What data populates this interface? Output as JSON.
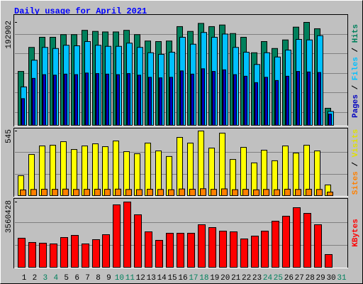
{
  "chart_data": {
    "type": "bar",
    "title": "Daily usage for April 2021",
    "categories": [
      "1",
      "2",
      "3",
      "4",
      "5",
      "6",
      "7",
      "8",
      "9",
      "10",
      "11",
      "12",
      "13",
      "14",
      "15",
      "16",
      "17",
      "18",
      "19",
      "20",
      "21",
      "22",
      "23",
      "24",
      "25",
      "26",
      "27",
      "28",
      "29",
      "30",
      "31"
    ],
    "category_colors": [
      "#000000",
      "#000000",
      "#00805c",
      "#00805c",
      "#000000",
      "#000000",
      "#000000",
      "#000000",
      "#000000",
      "#00805c",
      "#00805c",
      "#000000",
      "#000000",
      "#000000",
      "#000000",
      "#000000",
      "#00805c",
      "#00805c",
      "#000000",
      "#000000",
      "#000000",
      "#000000",
      "#000000",
      "#00805c",
      "#00805c",
      "#000000",
      "#000000",
      "#000000",
      "#000000",
      "#000000",
      "#00805c"
    ],
    "label_separator": "/",
    "panels": [
      {
        "ylim": [
          0,
          192902
        ],
        "yticks": [
          192902
        ],
        "series": [
          {
            "name": "Hits",
            "color": "#00805c",
            "values": [
              101000,
              146000,
              165000,
              165000,
              170000,
              170000,
              178000,
              176000,
              175000,
              175000,
              178000,
              170000,
              158000,
              157000,
              158000,
              185000,
              176000,
              191000,
              185000,
              188000,
              172000,
              165000,
              136000,
              157000,
              144000,
              160000,
              184000,
              192902,
              181000,
              32000,
              null
            ]
          },
          {
            "name": "Files",
            "color": "#00c0ff",
            "values": [
              72000,
              122000,
              146000,
              144000,
              150000,
              149000,
              157000,
              150000,
              148000,
              148000,
              154000,
              146000,
              136000,
              133000,
              137000,
              165000,
              152000,
              174000,
              165000,
              171000,
              146000,
              137000,
              114000,
              136000,
              128000,
              141000,
              161000,
              160000,
              168000,
              26000,
              null
            ]
          },
          {
            "name": "Pages",
            "color": "#0000c0",
            "values": [
              50000,
              88000,
              95000,
              94000,
              96000,
              95000,
              98000,
              97000,
              96000,
              95000,
              97000,
              94000,
              90000,
              89000,
              90000,
              102000,
              96000,
              106000,
              101000,
              104000,
              95000,
              92000,
              80000,
              90000,
              84000,
              92000,
              101000,
              100000,
              99000,
              21000,
              null
            ]
          }
        ]
      },
      {
        "ylim": [
          0,
          545
        ],
        "yticks": [
          545
        ],
        "series": [
          {
            "name": "Visits",
            "color": "#ffff00",
            "values": [
              168,
              347,
              419,
              425,
              455,
              389,
              419,
              437,
              413,
              461,
              371,
              353,
              443,
              377,
              330,
              491,
              443,
              545,
              401,
              527,
              305,
              407,
              276,
              383,
              294,
              419,
              359,
              425,
              377,
              90,
              null
            ]
          },
          {
            "name": "Sites",
            "color": "#ff8000",
            "values": [
              48,
              52,
              54,
              53,
              55,
              52,
              53,
              54,
              53,
              55,
              52,
              51,
              54,
              52,
              50,
              56,
              54,
              58,
              53,
              57,
              50,
              53,
              49,
              52,
              50,
              54,
              52,
              54,
              52,
              30,
              null
            ]
          }
        ]
      },
      {
        "ylim": [
          0,
          3560428
        ],
        "yticks": [
          3560428
        ],
        "series": [
          {
            "name": "KBytes",
            "color": "#ff0000",
            "values": [
              1587000,
              1355000,
              1316000,
              1277000,
              1625000,
              1741000,
              1277000,
              1509000,
              1780000,
              3406000,
              3560428,
              2864000,
              1935000,
              1471000,
              1858000,
              1858000,
              1858000,
              2322000,
              2167000,
              1974000,
              1935000,
              1548000,
              1703000,
              1974000,
              2516000,
              2787000,
              3251000,
              2941000,
              2322000,
              697000,
              null
            ]
          }
        ]
      }
    ]
  }
}
